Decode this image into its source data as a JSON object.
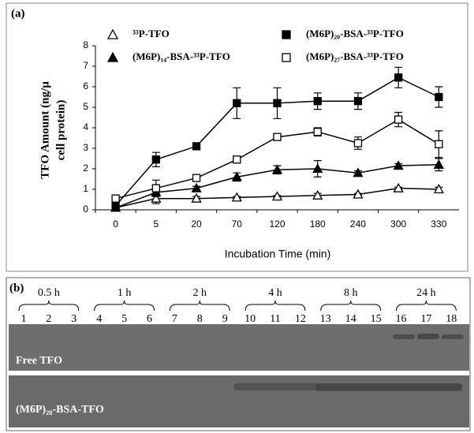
{
  "chart_data": {
    "type": "line",
    "panel": "(a)",
    "xlabel": "Incubation Time (min)",
    "ylabel": [
      "TFO Amount (ng/µ",
      "cell protein)"
    ],
    "categories": [
      0,
      5,
      20,
      70,
      120,
      180,
      240,
      300,
      330
    ],
    "ylim": [
      0,
      8
    ],
    "yticks": [
      0,
      1,
      2,
      3,
      4,
      5,
      6,
      7,
      8
    ],
    "series": [
      {
        "name": "³³P-TFO",
        "color": "#000000",
        "marker": "triangle",
        "filled": false,
        "values": [
          0.1,
          0.55,
          0.55,
          0.6,
          0.65,
          0.7,
          0.75,
          1.05,
          1.0
        ],
        "errors": [
          0.05,
          0.25,
          0.1,
          0.05,
          0.05,
          0.1,
          0.05,
          0.05,
          0.1
        ]
      },
      {
        "name": "(M6P)₁₄-BSA-³³P-TFO",
        "color": "#000000",
        "marker": "triangle",
        "filled": true,
        "values": [
          0.1,
          0.85,
          1.05,
          1.6,
          1.95,
          2.0,
          1.8,
          2.15,
          2.2
        ],
        "errors": [
          0.05,
          0.1,
          0.1,
          0.2,
          0.2,
          0.4,
          0.1,
          0.1,
          0.3
        ]
      },
      {
        "name": "(M6P)₂₀-BSA-³³P-TFO",
        "color": "#000000",
        "marker": "square",
        "filled": true,
        "values": [
          0.2,
          2.45,
          3.1,
          5.2,
          5.2,
          5.3,
          5.3,
          6.45,
          5.5
        ],
        "errors": [
          0.1,
          0.35,
          0.1,
          0.75,
          0.75,
          0.4,
          0.4,
          0.5,
          0.5
        ]
      },
      {
        "name": "(M6P)₂₇-BSA-³³P-TFO",
        "color": "#000000",
        "marker": "square",
        "filled": false,
        "values": [
          0.55,
          1.05,
          1.55,
          2.45,
          3.55,
          3.8,
          3.25,
          4.4,
          3.2
        ],
        "errors": [
          0.05,
          0.4,
          0.1,
          0.1,
          0.05,
          0.2,
          0.3,
          0.35,
          0.65
        ]
      }
    ]
  },
  "panel_b": {
    "panel": "(b)",
    "groups": [
      "0.5 h",
      "1 h",
      "2 h",
      "4 h",
      "8 h",
      "24 h"
    ],
    "lanes": [
      1,
      2,
      3,
      4,
      5,
      6,
      7,
      8,
      9,
      10,
      11,
      12,
      13,
      14,
      15,
      16,
      17,
      18
    ],
    "rows": [
      "Free TFO",
      "(M6P)₂₀-BSA-TFO"
    ]
  }
}
